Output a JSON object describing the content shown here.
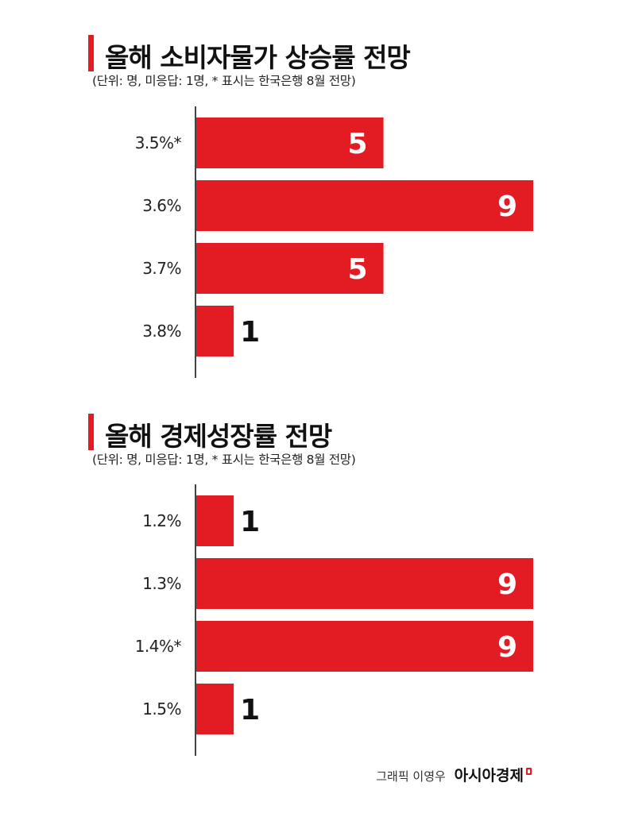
{
  "charts_header": [
    {
      "title": "올해 소비자물가 상승률 전망",
      "subtitle": "(단위: 명, 미응답: 1명, * 표시는 한국은행 8월 전망)"
    },
    {
      "title": "올해 경제성장률 전망",
      "subtitle": "(단위: 명, 미응답: 1명, * 표시는 한국은행 8월 전망)"
    }
  ],
  "credit": {
    "author": "그래픽 이영우",
    "brand": "아시아경제"
  },
  "colors": {
    "bar": "#e31b23",
    "axis": "#444444"
  },
  "chart_data": [
    {
      "type": "bar",
      "orientation": "horizontal",
      "title": "올해 소비자물가 상승률 전망",
      "subtitle": "(단위: 명, 미응답: 1명, * 표시는 한국은행 8월 전망)",
      "categories": [
        "3.5%*",
        "3.6%",
        "3.7%",
        "3.8%"
      ],
      "values": [
        5,
        9,
        5,
        1
      ],
      "xlim": [
        0,
        9
      ]
    },
    {
      "type": "bar",
      "orientation": "horizontal",
      "title": "올해 경제성장률 전망",
      "subtitle": "(단위: 명, 미응답: 1명, * 표시는 한국은행 8월 전망)",
      "categories": [
        "1.2%",
        "1.3%",
        "1.4%*",
        "1.5%"
      ],
      "values": [
        1,
        9,
        9,
        1
      ],
      "xlim": [
        0,
        9
      ]
    }
  ]
}
